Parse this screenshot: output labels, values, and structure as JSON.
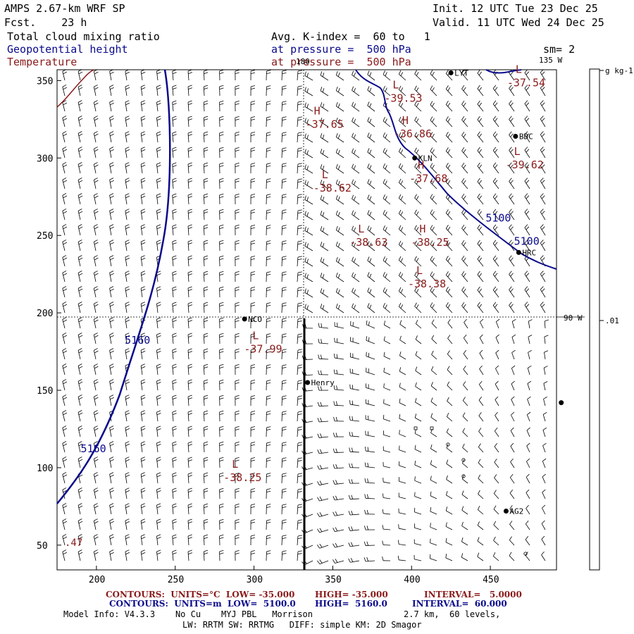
{
  "header": {
    "model_title": "AMPS 2.67-km WRF SP",
    "forecast": "Fcst.    23 h",
    "init": "Init. 12 UTC Tue 23 Dec 25",
    "valid": "Valid. 11 UTC Wed 24 Dec 25",
    "field1": "Total cloud mixing ratio",
    "field2": "Geopotential height",
    "field3": "Temperature",
    "avg_line": "Avg. K-index =  60 to   1",
    "pressure1": "at pressure =  500 hPa",
    "pressure2": "at pressure =  500 hPa",
    "smoothing": "sm= 2"
  },
  "map": {
    "x_ticks": [
      "200",
      "250",
      "300",
      "350",
      "400",
      "450"
    ],
    "y_ticks": [
      "350",
      "300",
      "250",
      "200",
      "150",
      "100",
      "50"
    ],
    "meridian_top": "180",
    "meridian_135": "135 W",
    "meridian_90": "90 W",
    "stations": [
      {
        "name": "LYT",
        "x": 425,
        "y": 355
      },
      {
        "name": "BDC",
        "x": 466,
        "y": 314
      },
      {
        "name": "KLN",
        "x": 402,
        "y": 300
      },
      {
        "name": "HRC",
        "x": 468,
        "y": 239
      },
      {
        "name": "NCO",
        "x": 294,
        "y": 196
      },
      {
        "name": "Henry",
        "x": 334,
        "y": 155
      }
    ],
    "edge_station": {
      "x": 495,
      "y": 142
    },
    "ag2_station": {
      "name": "AG2",
      "x": 460,
      "y": 72
    },
    "pressure_centers": [
      {
        "type": "L",
        "value": "-39.53",
        "x": 388,
        "y": 345
      },
      {
        "type": "L",
        "value": "-37.54",
        "x": 466,
        "y": 355
      },
      {
        "type": "H",
        "value": "-37.65",
        "x": 338,
        "y": 328
      },
      {
        "type": "H",
        "value": "-36.86",
        "x": 394,
        "y": 322
      },
      {
        "type": "L",
        "value": "-39.62",
        "x": 465,
        "y": 302
      },
      {
        "type": "H",
        "value": "-37.68",
        "x": 404,
        "y": 293
      },
      {
        "type": "L",
        "value": "-38.62",
        "x": 343,
        "y": 287
      },
      {
        "type": "L",
        "value": "-38.63",
        "x": 366,
        "y": 252
      },
      {
        "type": "H",
        "value": "-38.25",
        "x": 405,
        "y": 252
      },
      {
        "type": "L",
        "value": "-38.38",
        "x": 403,
        "y": 225
      },
      {
        "type": "L",
        "value": "-37.99",
        "x": 299,
        "y": 183
      },
      {
        "type": "L",
        "value": "-38.25",
        "x": 286,
        "y": 100
      }
    ],
    "height_labels": [
      {
        "text": "5100",
        "x": 447,
        "y": 259
      },
      {
        "text": "5100",
        "x": 465,
        "y": 244
      },
      {
        "text": "5160",
        "x": 218,
        "y": 180
      },
      {
        "text": "5160",
        "x": 190,
        "y": 110
      }
    ],
    "edge_value": ".47"
  },
  "colorbar": {
    "unit": "g kg-1",
    "tick_label": ".01"
  },
  "footer": {
    "contours_temp": "CONTOURS:  UNITS=°C  LOW= -35.000",
    "contours_temp_high": "HIGH= -35.000",
    "contours_temp_interval": "INTERVAL=   5.0000",
    "contours_hgt": "CONTOURS:  UNITS=m  LOW=  5100.0",
    "contours_hgt_high": "HIGH=  5160.0",
    "contours_hgt_interval": "INTERVAL=  60.000",
    "model_info": "Model Info: V4.3.3    No Cu    MYJ PBL   Morrison",
    "model_info2": "2.7 km,  60 levels,",
    "physics": "LW: RRTM SW: RRTMG   DIFF: simple KM: 2D Smagor"
  },
  "colors": {
    "height_contour": "#0a0a8c",
    "temperature": "#8a1a1a",
    "barbs": "#000000"
  }
}
